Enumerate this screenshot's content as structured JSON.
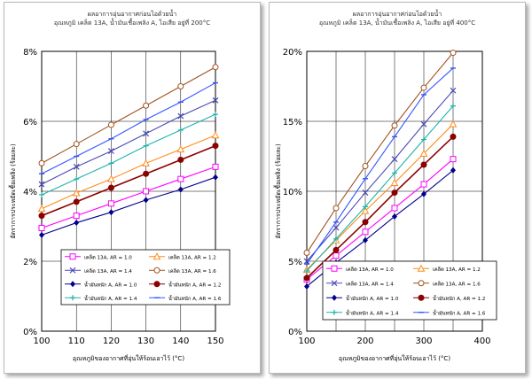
{
  "chart_data": [
    {
      "type": "line",
      "title": "ผลอาการอุ่นอากาศก่อนไอด้วยน้ำ",
      "subtitle": "อุณหภูมิ เคล็ต 13A, น้ำมันเชื้อเพลิง A, ไอเสีย อยู่ที่ 200°C",
      "xlabel": "อุณหภูมิของอากาศที่อุ่นให้ร้อนเอาไว้ (°C)",
      "ylabel": "อัตราการประหยัดเชื้อเพลิง (ร้อยละ)",
      "x": [
        100,
        110,
        120,
        130,
        140,
        150
      ],
      "xticks": [
        "100",
        "110",
        "120",
        "130",
        "140",
        "150"
      ],
      "xlim": [
        100,
        150
      ],
      "ylim": [
        0,
        8
      ],
      "yticks": [
        "0%",
        "2%",
        "4%",
        "6%",
        "8%"
      ],
      "grid": true,
      "legend_position": "bottom-right",
      "series": [
        {
          "name": "เคล็ต 13A, AR = 1.0",
          "color": "#ff00ff",
          "marker": "square-open",
          "values": [
            2.95,
            3.3,
            3.65,
            4.0,
            4.35,
            4.7
          ]
        },
        {
          "name": "เคล็ต 13A, AR = 1.2",
          "color": "#ff8c1a",
          "marker": "triangle-open",
          "values": [
            3.5,
            3.95,
            4.35,
            4.8,
            5.2,
            5.6
          ]
        },
        {
          "name": "เคล็ต 13A, AR = 1.4",
          "color": "#4a4ab8",
          "marker": "x",
          "values": [
            4.2,
            4.7,
            5.15,
            5.65,
            6.15,
            6.6
          ]
        },
        {
          "name": "เคล็ต 13A, AR = 1.6",
          "color": "#a0521e",
          "marker": "circle-open",
          "values": [
            4.8,
            5.35,
            5.9,
            6.45,
            7.0,
            7.55
          ]
        },
        {
          "name": "น้ำมันหนัก A, AR = 1.0",
          "color": "#00008b",
          "marker": "diamond",
          "values": [
            2.75,
            3.1,
            3.4,
            3.75,
            4.05,
            4.4
          ]
        },
        {
          "name": "น้ำมันหนัก A, AR = 1.2",
          "color": "#8b0000",
          "marker": "circle",
          "values": [
            3.3,
            3.7,
            4.1,
            4.5,
            4.9,
            5.3
          ]
        },
        {
          "name": "น้ำมันหนัก A, AR = 1.4",
          "color": "#20b2aa",
          "marker": "plus",
          "values": [
            3.9,
            4.35,
            4.8,
            5.3,
            5.75,
            6.2
          ]
        },
        {
          "name": "น้ำมันหนัก A, AR = 1.6",
          "color": "#3355ff",
          "marker": "dash",
          "values": [
            4.5,
            5.0,
            5.5,
            6.05,
            6.55,
            7.1
          ]
        }
      ]
    },
    {
      "type": "line",
      "title": "ผลอาการอุ่นอากาศก่อนไอด้วยน้ำ",
      "subtitle": "อุณหภูมิ เคล็ต 13A, น้ำมันเชื้อเพลิง A, ไอเสีย อยู่ที่ 400°C",
      "xlabel": "อุณหภูมิของอากาศที่อุ่นให้ร้อนเอาไว้ (°C)",
      "ylabel": "อัตราการประหยัดเชื้อเพลิง (ร้อยละ)",
      "x": [
        100,
        150,
        200,
        250,
        300,
        350
      ],
      "xticks": [
        "100",
        "200",
        "300",
        "400"
      ],
      "xlim": [
        100,
        400
      ],
      "ylim": [
        0,
        20
      ],
      "yticks": [
        "0%",
        "5%",
        "10%",
        "15%",
        "20%"
      ],
      "grid": true,
      "legend_position": "bottom-right",
      "series": [
        {
          "name": "เคล็ต 13A, AR = 1.0",
          "color": "#ff00ff",
          "marker": "square-open",
          "values": [
            3.7,
            5.4,
            7.1,
            8.8,
            10.5,
            12.3
          ]
        },
        {
          "name": "เคล็ต 13A, AR = 1.2",
          "color": "#ff8c1a",
          "marker": "triangle-open",
          "values": [
            4.4,
            6.5,
            8.6,
            10.6,
            12.7,
            14.8
          ]
        },
        {
          "name": "เคล็ต 13A, AR = 1.4",
          "color": "#4a4ab8",
          "marker": "x",
          "values": [
            5.0,
            7.4,
            9.9,
            12.3,
            14.8,
            17.2
          ]
        },
        {
          "name": "เคล็ต 13A, AR = 1.6",
          "color": "#a0521e",
          "marker": "circle-open",
          "values": [
            5.6,
            8.8,
            11.8,
            14.7,
            17.4,
            19.9
          ]
        },
        {
          "name": "น้ำมันหนัก A, AR = 1.0",
          "color": "#00008b",
          "marker": "diamond",
          "values": [
            3.2,
            4.9,
            6.5,
            8.2,
            9.8,
            11.5
          ]
        },
        {
          "name": "น้ำมันหนัก A, AR = 1.2",
          "color": "#8b0000",
          "marker": "circle",
          "values": [
            3.8,
            5.8,
            7.8,
            9.9,
            11.9,
            13.9
          ]
        },
        {
          "name": "น้ำมันหนัก A, AR = 1.4",
          "color": "#20b2aa",
          "marker": "plus",
          "values": [
            4.3,
            6.6,
            8.9,
            11.3,
            13.7,
            16.1
          ]
        },
        {
          "name": "น้ำมันหนัก A, AR = 1.6",
          "color": "#3355ff",
          "marker": "dash",
          "values": [
            4.8,
            7.8,
            10.9,
            13.9,
            16.9,
            18.8
          ]
        }
      ]
    }
  ]
}
